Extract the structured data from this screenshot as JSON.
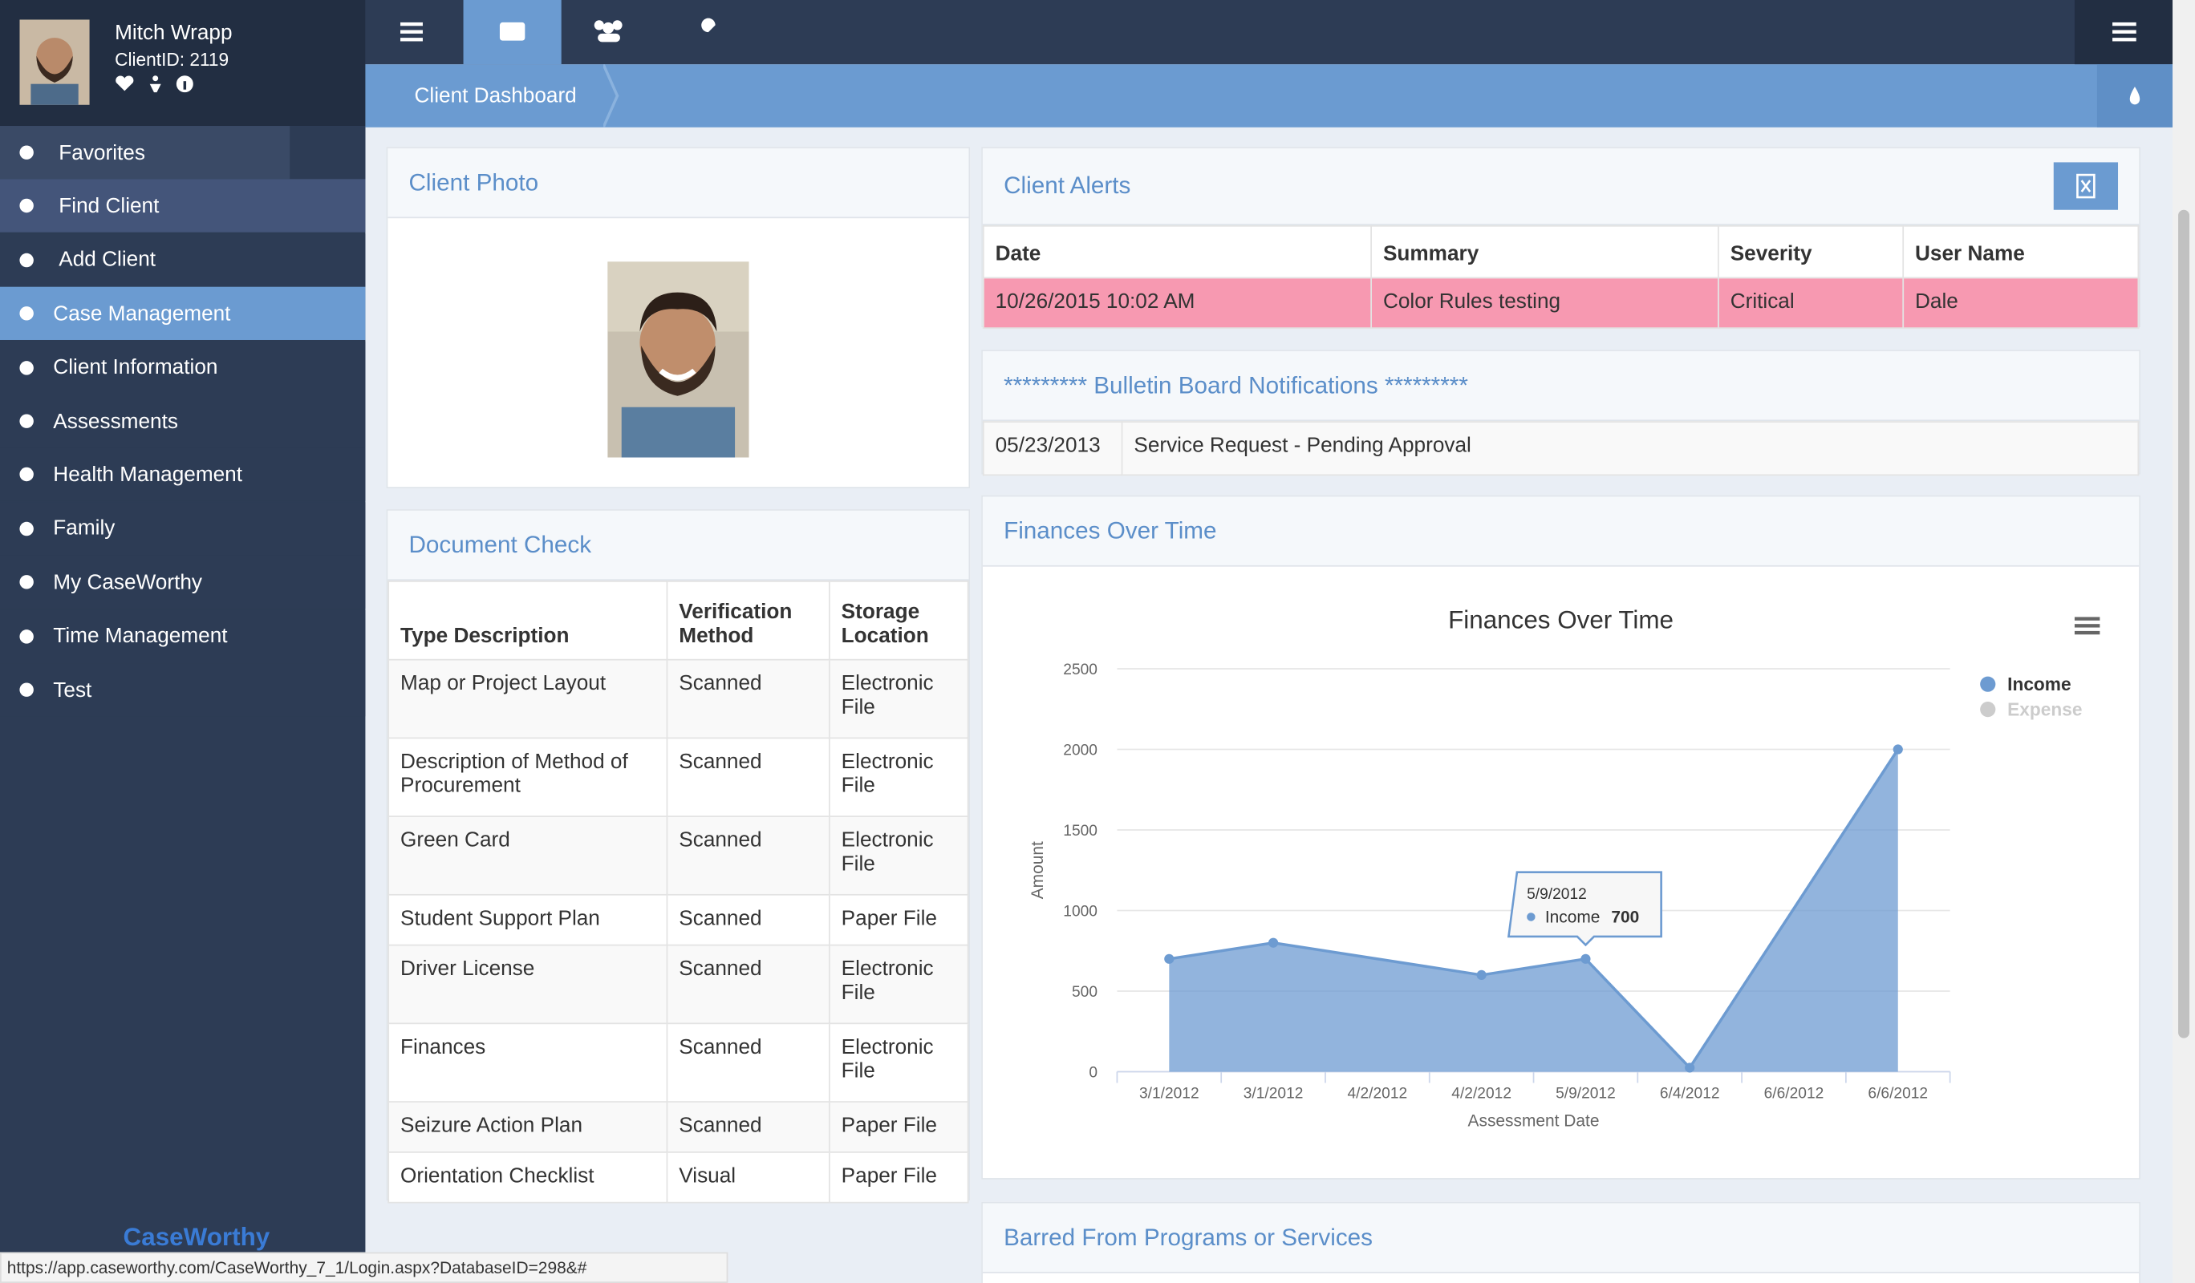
{
  "sidebar": {
    "user": {
      "name": "Mitch Wrapp",
      "client_id": "ClientID: 2119"
    },
    "menu": [
      "Favorites",
      "Find Client",
      "Add Client",
      "Case Management",
      "Client Information",
      "Assessments",
      "Health Management",
      "Family",
      "My CaseWorthy",
      "Time Management",
      "Test"
    ],
    "logo": "CaseWorthy"
  },
  "breadcrumb": "Client Dashboard",
  "client_photo": {
    "title": "Client Photo"
  },
  "client_alerts": {
    "title": "Client Alerts",
    "columns": [
      "Date",
      "Summary",
      "Severity",
      "User Name"
    ],
    "rows": [
      [
        "10/26/2015 10:02 AM",
        "Color Rules testing",
        "Critical",
        "Dale"
      ]
    ]
  },
  "bulletin": {
    "title": "********* Bulletin Board Notifications *********",
    "rows": [
      [
        "05/23/2013",
        "Service Request - Pending Approval"
      ]
    ]
  },
  "document_check": {
    "title": "Document Check",
    "columns": [
      "Type Description",
      "Verification Method",
      "Storage Location"
    ],
    "rows": [
      [
        "Map or Project Layout",
        "Scanned",
        "Electronic File"
      ],
      [
        "Description of Method of Procurement",
        "Scanned",
        "Electronic File"
      ],
      [
        "Green Card",
        "Scanned",
        "Electronic File"
      ],
      [
        "Student Support Plan",
        "Scanned",
        "Paper File"
      ],
      [
        "Driver License",
        "Scanned",
        "Electronic File"
      ],
      [
        "Finances",
        "Scanned",
        "Electronic File"
      ],
      [
        "Seizure Action Plan",
        "Scanned",
        "Paper File"
      ],
      [
        "Orientation Checklist",
        "Visual",
        "Paper File"
      ]
    ]
  },
  "finances_panel": {
    "title": "Finances Over Time"
  },
  "barred": {
    "title": "Barred From Programs or Services"
  },
  "status_url": "https://app.caseworthy.com/CaseWorthy_7_1/Login.aspx?DatabaseID=298&#",
  "chart_data": {
    "type": "area",
    "title": "Finances Over Time",
    "x_label": "Assessment Date",
    "y_label": "Amount",
    "categories": [
      "3/1/2012",
      "3/1/2012",
      "4/2/2012",
      "4/2/2012",
      "5/9/2012",
      "6/4/2012",
      "6/6/2012",
      "6/6/2012"
    ],
    "series": [
      {
        "name": "Income",
        "color": "#6d9bd1",
        "visible": true,
        "values": [
          700,
          800,
          null,
          600,
          700,
          25,
          null,
          2000
        ]
      },
      {
        "name": "Expense",
        "color": "#cccccc",
        "visible": false,
        "values": [
          null,
          null,
          null,
          null,
          null,
          null,
          null,
          null
        ]
      }
    ],
    "connect_nulls": true,
    "ylim": [
      0,
      2500
    ],
    "yticks": [
      0,
      500,
      1000,
      1500,
      2000,
      2500
    ],
    "grid": true,
    "legend": "right",
    "tooltip_index": 4
  }
}
